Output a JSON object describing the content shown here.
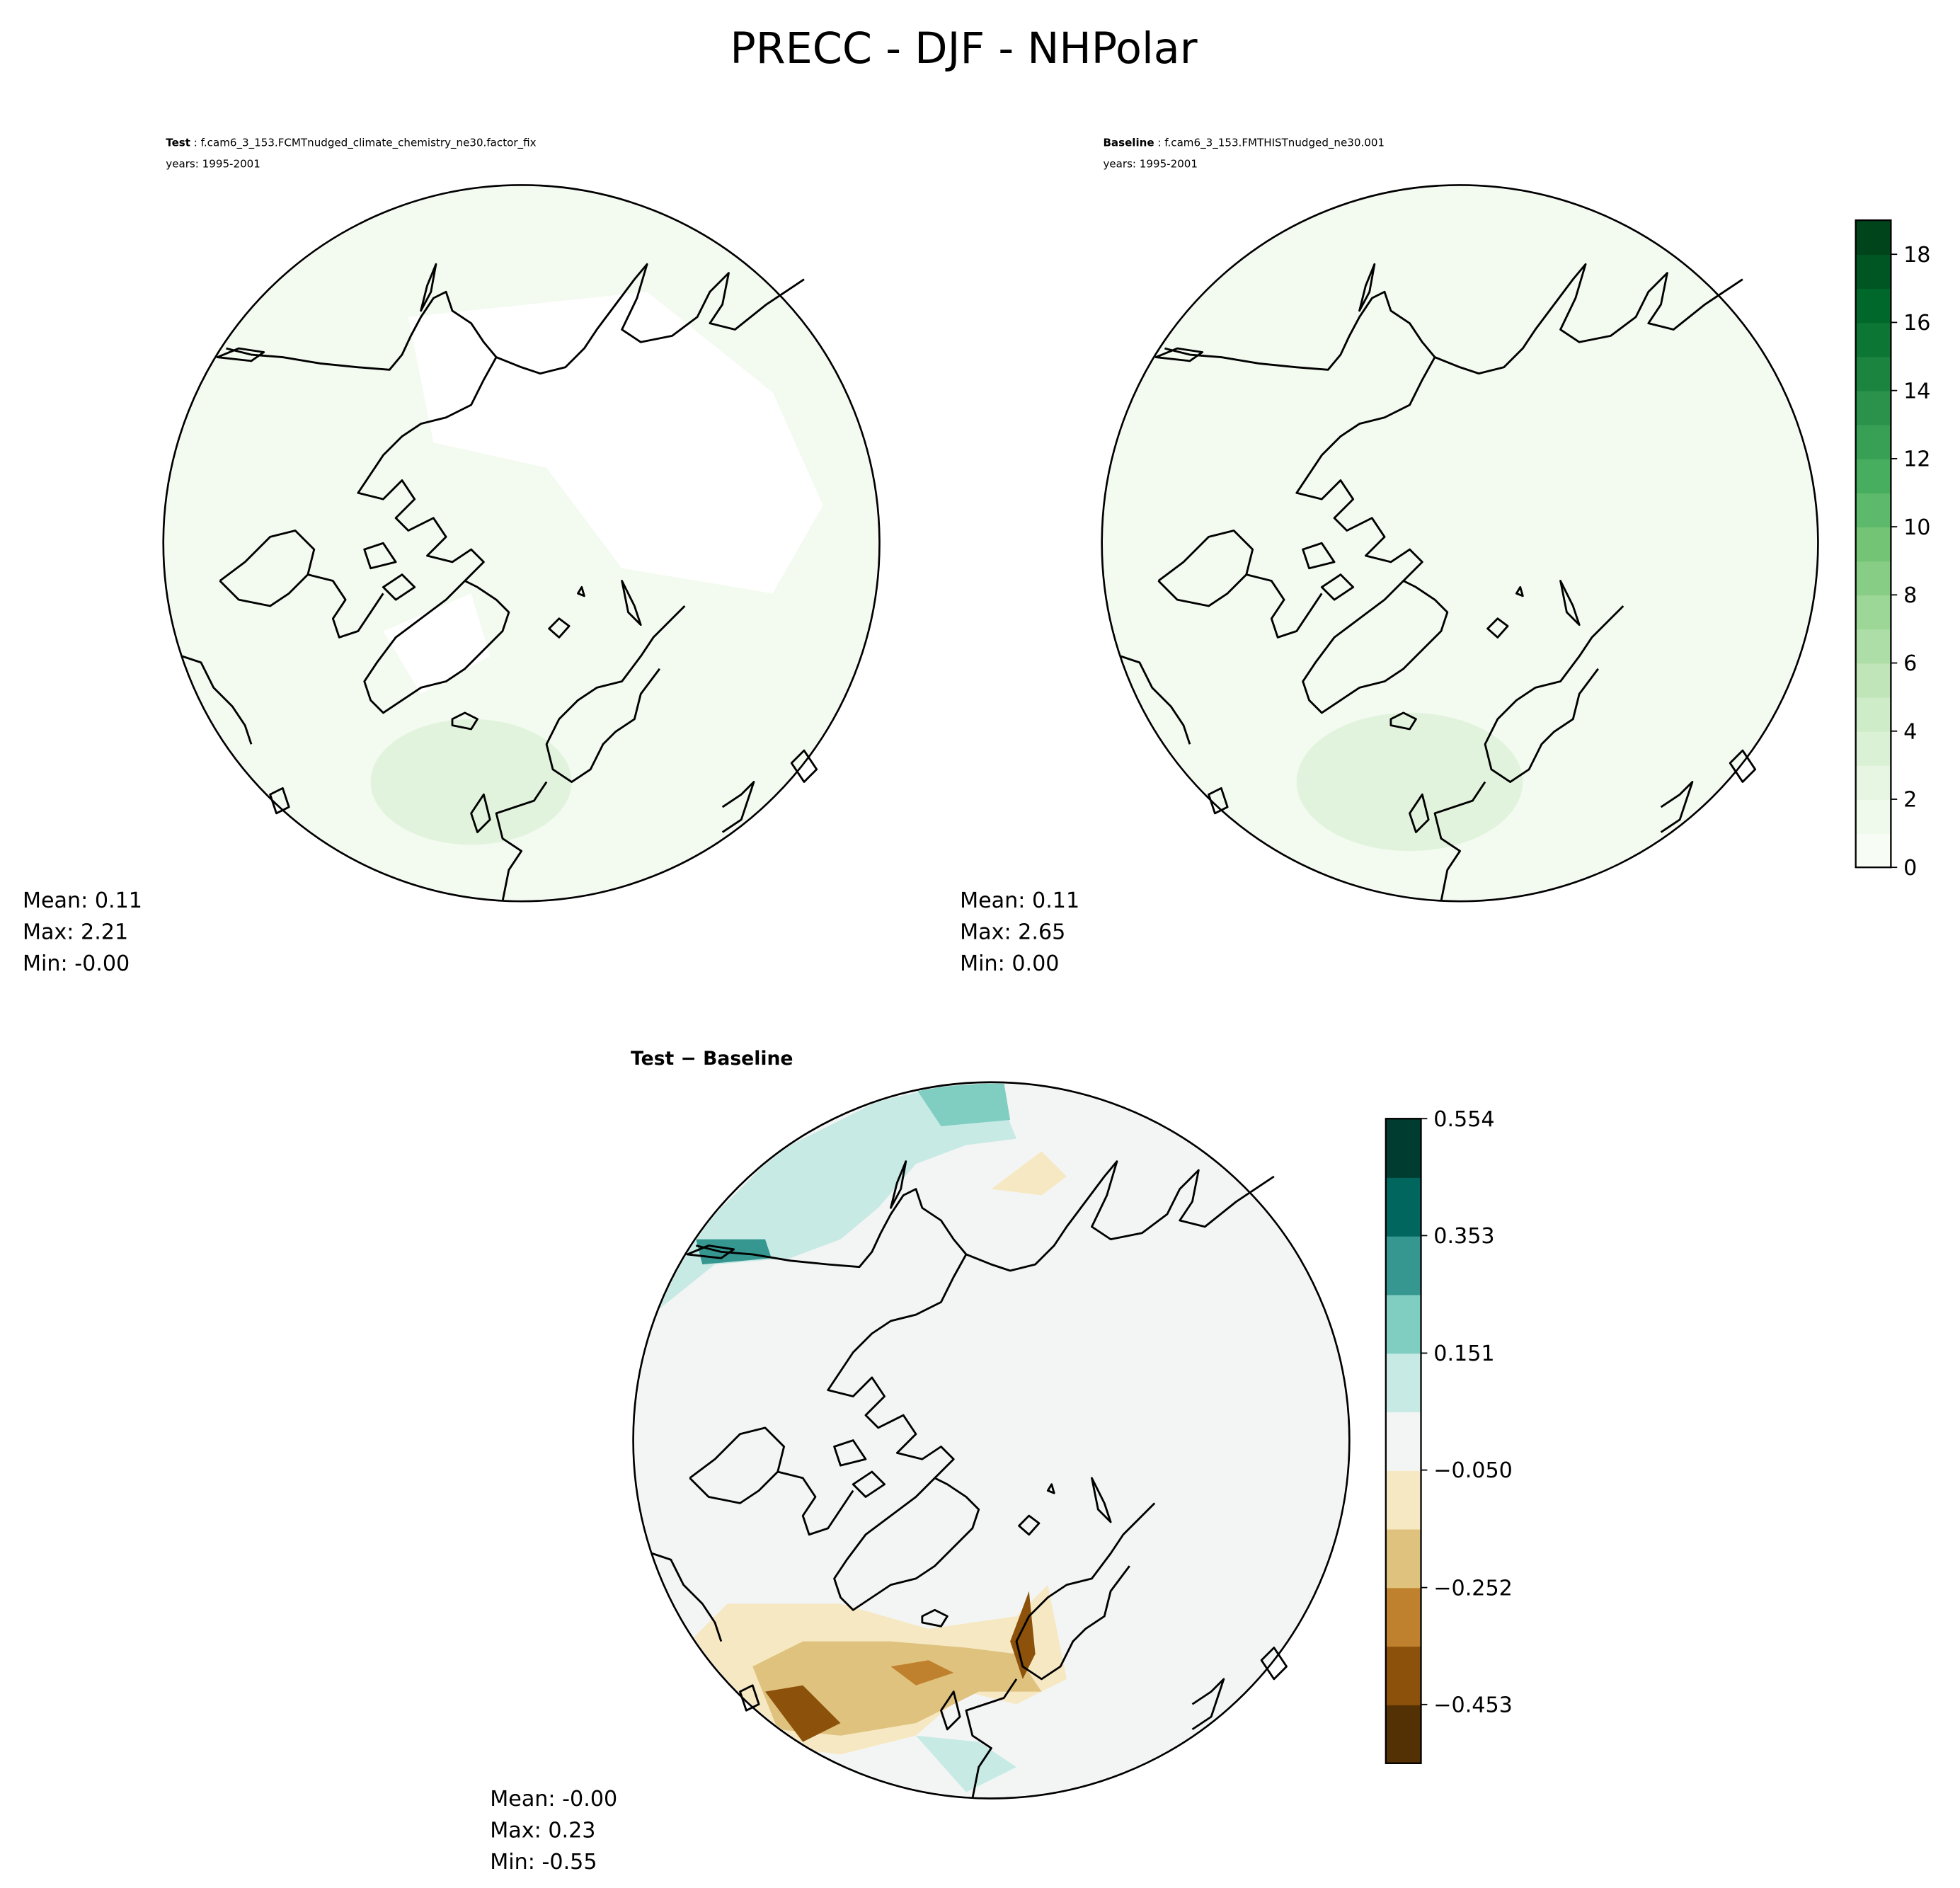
{
  "chart_data": {
    "type": "heatmap",
    "title": "PRECC - DJF - NHPolar",
    "panels": [
      {
        "id": "test",
        "label_bold": "Test",
        "label_rest": " : f.cam6_3_153.FCMTnudged_climate_chemistry_ne30.factor_fix",
        "years": "years: 1995-2001",
        "stats": {
          "mean": "Mean:  0.11",
          "max": "Max:  2.21",
          "min": "Min: -0.00"
        }
      },
      {
        "id": "baseline",
        "label_bold": "Baseline",
        "label_rest": " : f.cam6_3_153.FMTHISTnudged_ne30.001",
        "years": "years: 1995-2001",
        "stats": {
          "mean": "Mean:  0.11",
          "max": "Max:  2.65",
          "min": "Min:  0.00"
        }
      },
      {
        "id": "diff",
        "label_bold": "Test − Baseline",
        "stats": {
          "mean": "Mean: -0.00",
          "max": "Max:  0.23",
          "min": "Min: -0.55"
        }
      }
    ],
    "colorbar_main": {
      "range": [
        0,
        19
      ],
      "levels": 19,
      "ticks": [
        "0",
        "2",
        "4",
        "6",
        "8",
        "10",
        "12",
        "14",
        "16",
        "18"
      ],
      "tick_values": [
        0,
        2,
        4,
        6,
        8,
        10,
        12,
        14,
        16,
        18
      ],
      "colors": [
        "#f7fcf5",
        "#00441b"
      ],
      "colormap": "Greens"
    },
    "colorbar_diff": {
      "range": [
        -0.554,
        0.554
      ],
      "levels": 11,
      "ticks": [
        "−0.453",
        "−0.252",
        "−0.050",
        "0.151",
        "0.353",
        "0.554"
      ],
      "tick_values": [
        -0.453,
        -0.252,
        -0.05,
        0.151,
        0.353,
        0.554
      ],
      "colors": [
        "#543005",
        "#8c510a",
        "#bf812d",
        "#dfc27d",
        "#f6e8c3",
        "#f3f5f4",
        "#c7eae5",
        "#80cdc1",
        "#35978f",
        "#01665e",
        "#003c30"
      ],
      "colormap": "BrBG"
    }
  }
}
